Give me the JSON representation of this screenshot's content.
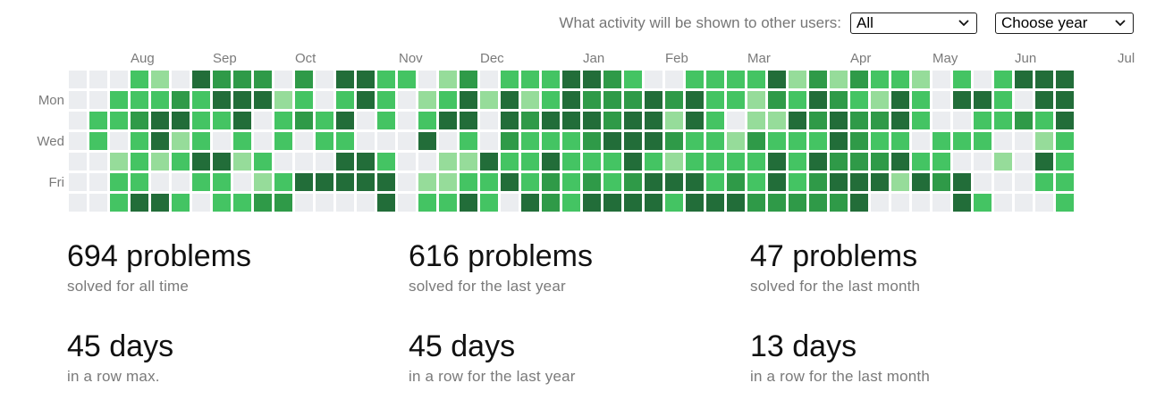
{
  "controls": {
    "visibility_label": "What activity will be shown to other users:",
    "activity_value": "All",
    "year_value": "Choose year"
  },
  "months": [
    "Aug",
    "Sep",
    "Oct",
    "Nov",
    "Dec",
    "Jan",
    "Feb",
    "Mar",
    "Apr",
    "May",
    "Jun",
    "Jul"
  ],
  "weekdays": [
    "Mon",
    "Wed",
    "Fri"
  ],
  "colors": {
    "0": "#ebedf0",
    "1": "#96dc9a",
    "2": "#44c463",
    "3": "#2f9a48",
    "4": "#226d39"
  },
  "activity_grid": [
    "0002104333030442201302224432002222413132210202444",
    "0022232444120242012414124333434221324321420442044",
    "0223442240232402024404344434414201143433420022324",
    "0202412020202200040203222344432213222432202220012",
    "0012124412000442001142242224212222424333422001042",
    "0022002201244444011224232323444232423444143400022",
    "0024420223300004022420432444424443333340000420002"
  ],
  "stats": [
    {
      "value": "694 problems",
      "caption": "solved for all time"
    },
    {
      "value": "616 problems",
      "caption": "solved for the last year"
    },
    {
      "value": "47 problems",
      "caption": "solved for the last month"
    },
    {
      "value": "45 days",
      "caption": "in a row max."
    },
    {
      "value": "45 days",
      "caption": "in a row for the last year"
    },
    {
      "value": "13 days",
      "caption": "in a row for the last month"
    }
  ]
}
